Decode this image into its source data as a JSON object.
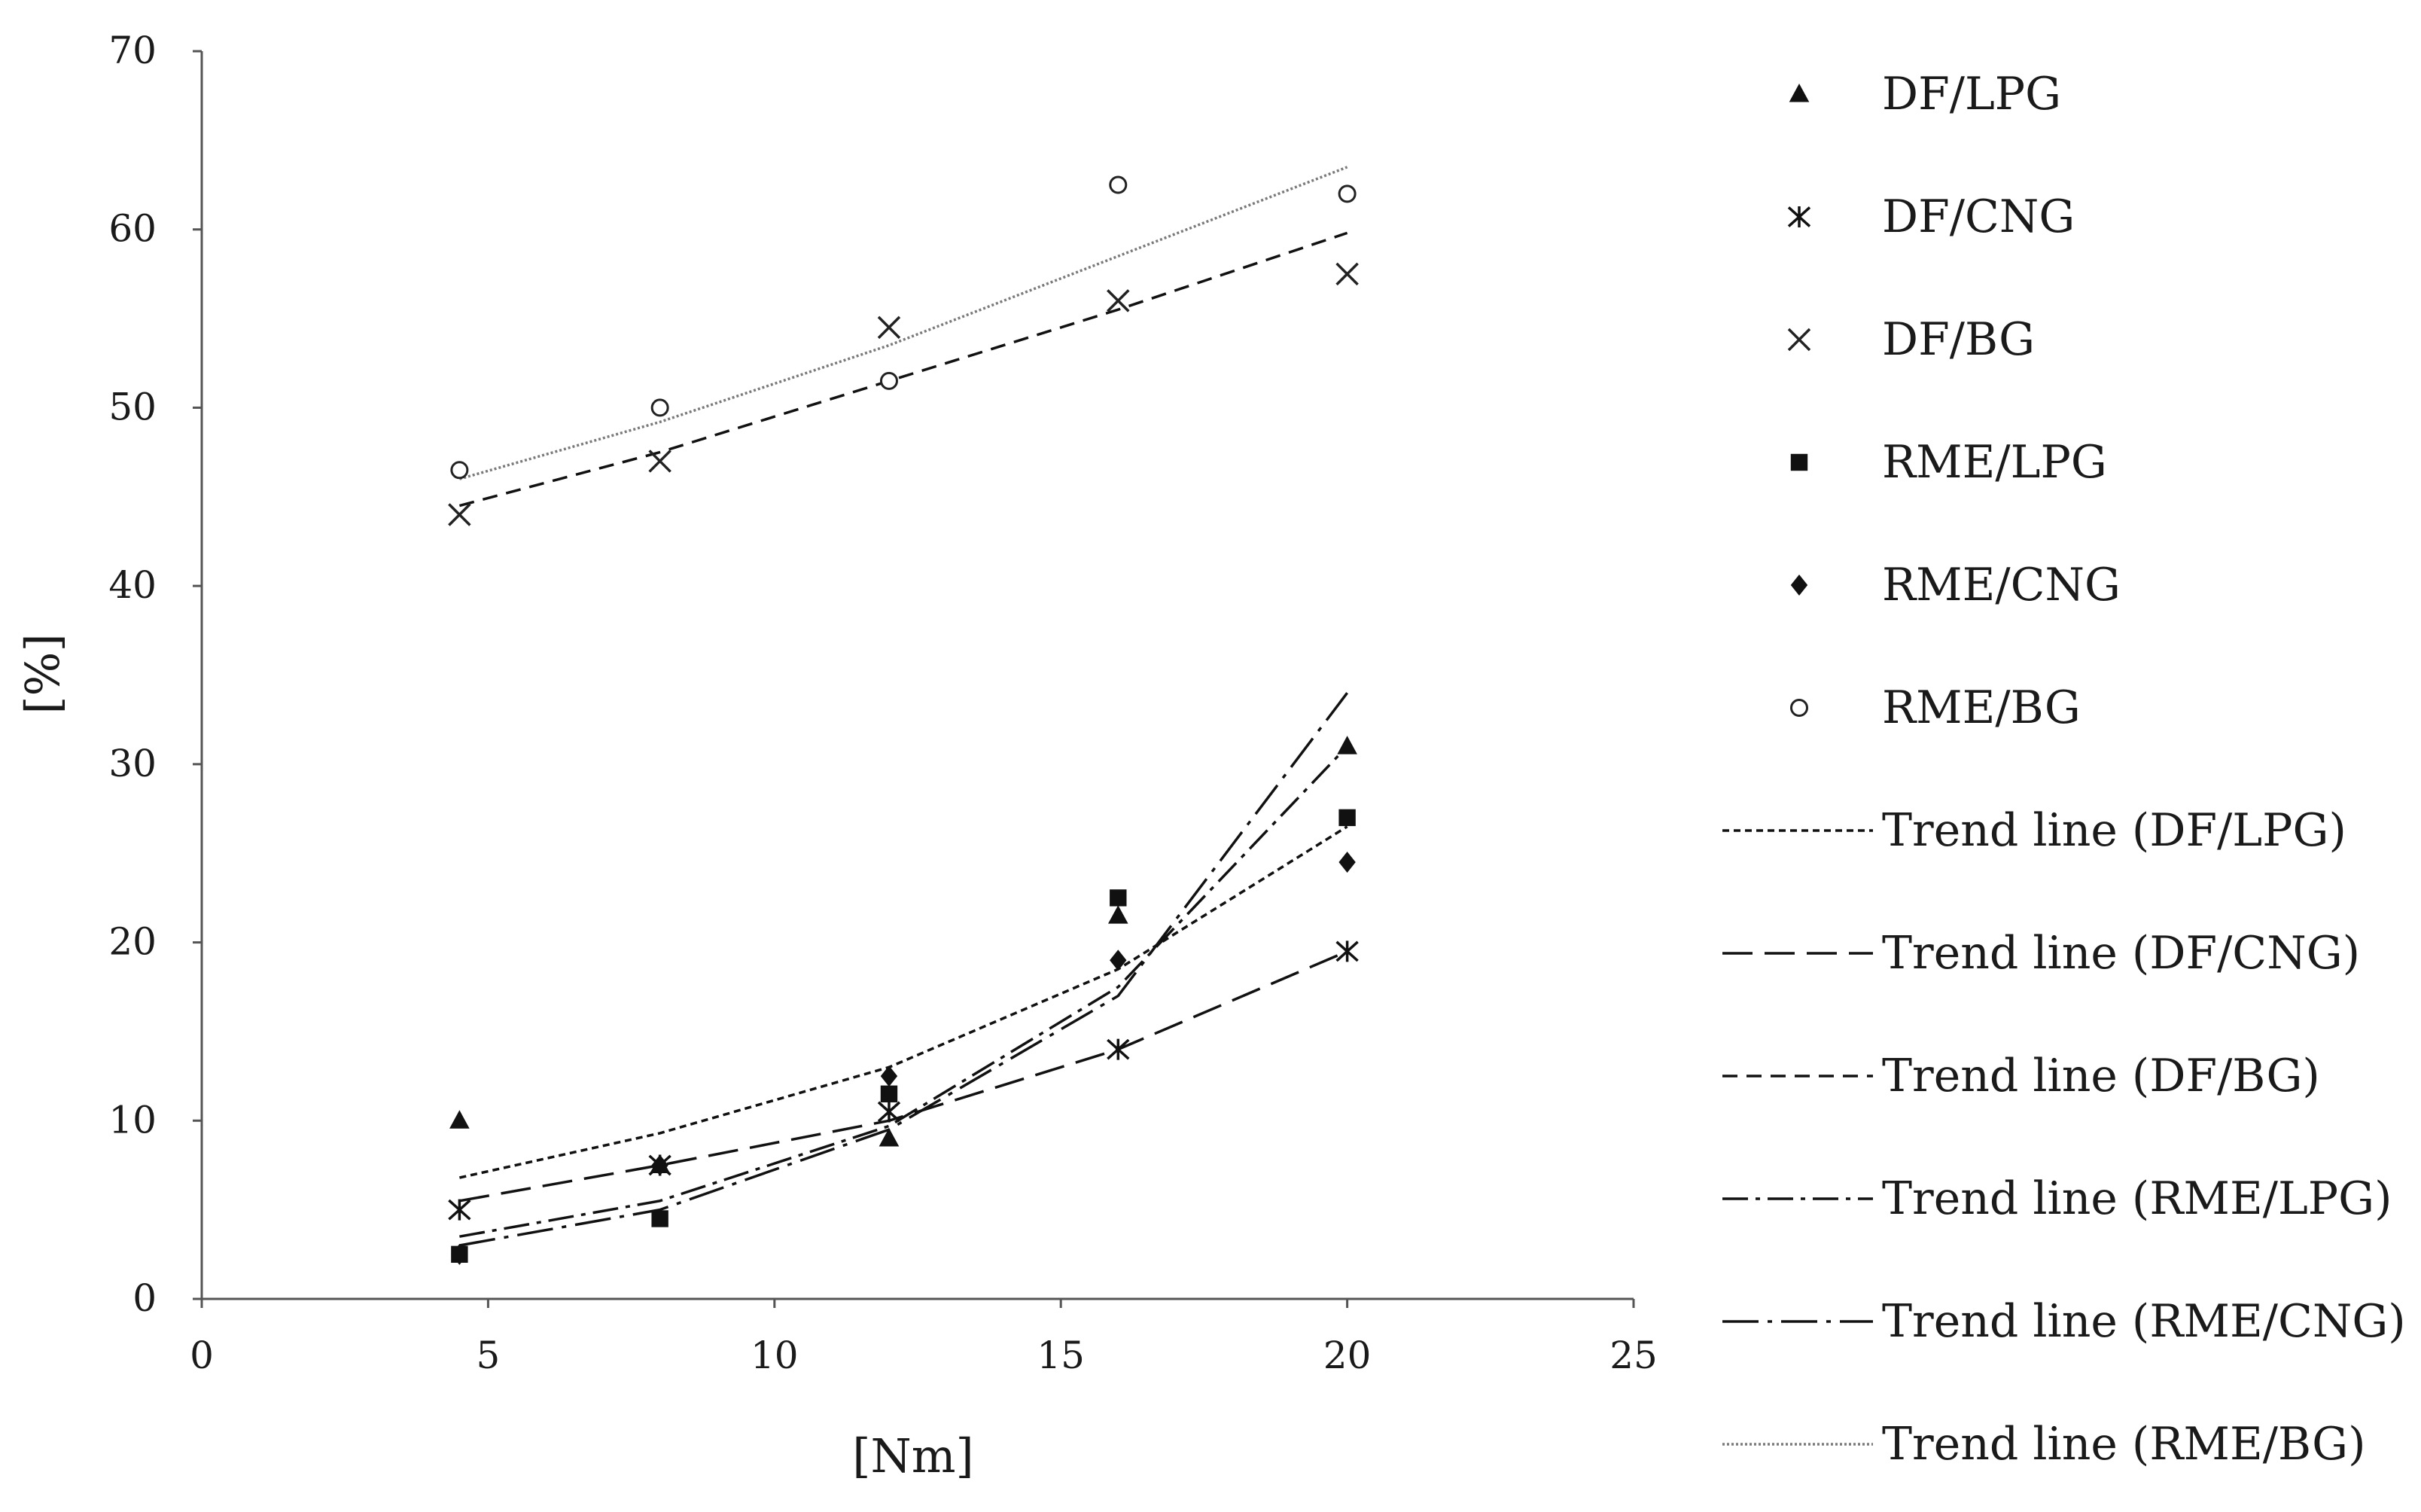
{
  "chart_data": {
    "type": "scatter",
    "title": "",
    "xlabel": "[Nm]",
    "ylabel": "[%]",
    "xlim": [
      0,
      25
    ],
    "ylim": [
      0,
      70
    ],
    "xticks": [
      0,
      5,
      10,
      15,
      20,
      25
    ],
    "yticks": [
      0,
      10,
      20,
      30,
      40,
      50,
      60,
      70
    ],
    "grid": false,
    "legend_position": "right",
    "x": [
      4.5,
      8,
      12,
      16,
      20
    ],
    "series": [
      {
        "name": "DF/LPG",
        "marker": "triangle",
        "values": [
          10,
          7.5,
          9,
          21.5,
          31
        ]
      },
      {
        "name": "DF/CNG",
        "marker": "asterisk",
        "values": [
          5,
          7.5,
          10.5,
          14,
          19.5
        ]
      },
      {
        "name": "DF/BG",
        "marker": "x",
        "values": [
          44,
          47,
          54.5,
          56,
          57.5
        ]
      },
      {
        "name": "RME/LPG",
        "marker": "square",
        "values": [
          2.5,
          4.5,
          11.5,
          22.5,
          27
        ]
      },
      {
        "name": "RME/CNG",
        "marker": "diamond",
        "values": [
          2.5,
          7.5,
          12.5,
          19,
          24.5
        ]
      },
      {
        "name": "RME/BG",
        "marker": "circle",
        "values": [
          46.5,
          50,
          51.5,
          62.5,
          62
        ]
      }
    ],
    "trendlines": [
      {
        "name": "Trend line (DF/LPG)",
        "style": "dotted-dense",
        "values": [
          6.8,
          9.3,
          13.0,
          18.5,
          26.5
        ]
      },
      {
        "name": "Trend line (DF/CNG)",
        "style": "long-dash",
        "values": [
          5.5,
          7.5,
          10.0,
          14.0,
          19.5
        ]
      },
      {
        "name": "Trend line (DF/BG)",
        "style": "dash",
        "values": [
          44.5,
          47.5,
          51.5,
          55.5,
          59.8
        ]
      },
      {
        "name": "Trend line (RME/LPG)",
        "style": "dash-dot",
        "values": [
          3.5,
          5.5,
          9.7,
          17.5,
          31.0
        ]
      },
      {
        "name": "Trend line (RME/CNG)",
        "style": "long-dash-dot",
        "values": [
          3.0,
          5.0,
          9.5,
          17.0,
          34.0
        ]
      },
      {
        "name": "Trend line (RME/BG)",
        "style": "fine-dot",
        "values": [
          46.0,
          49.2,
          53.5,
          58.5,
          63.5
        ]
      }
    ]
  }
}
